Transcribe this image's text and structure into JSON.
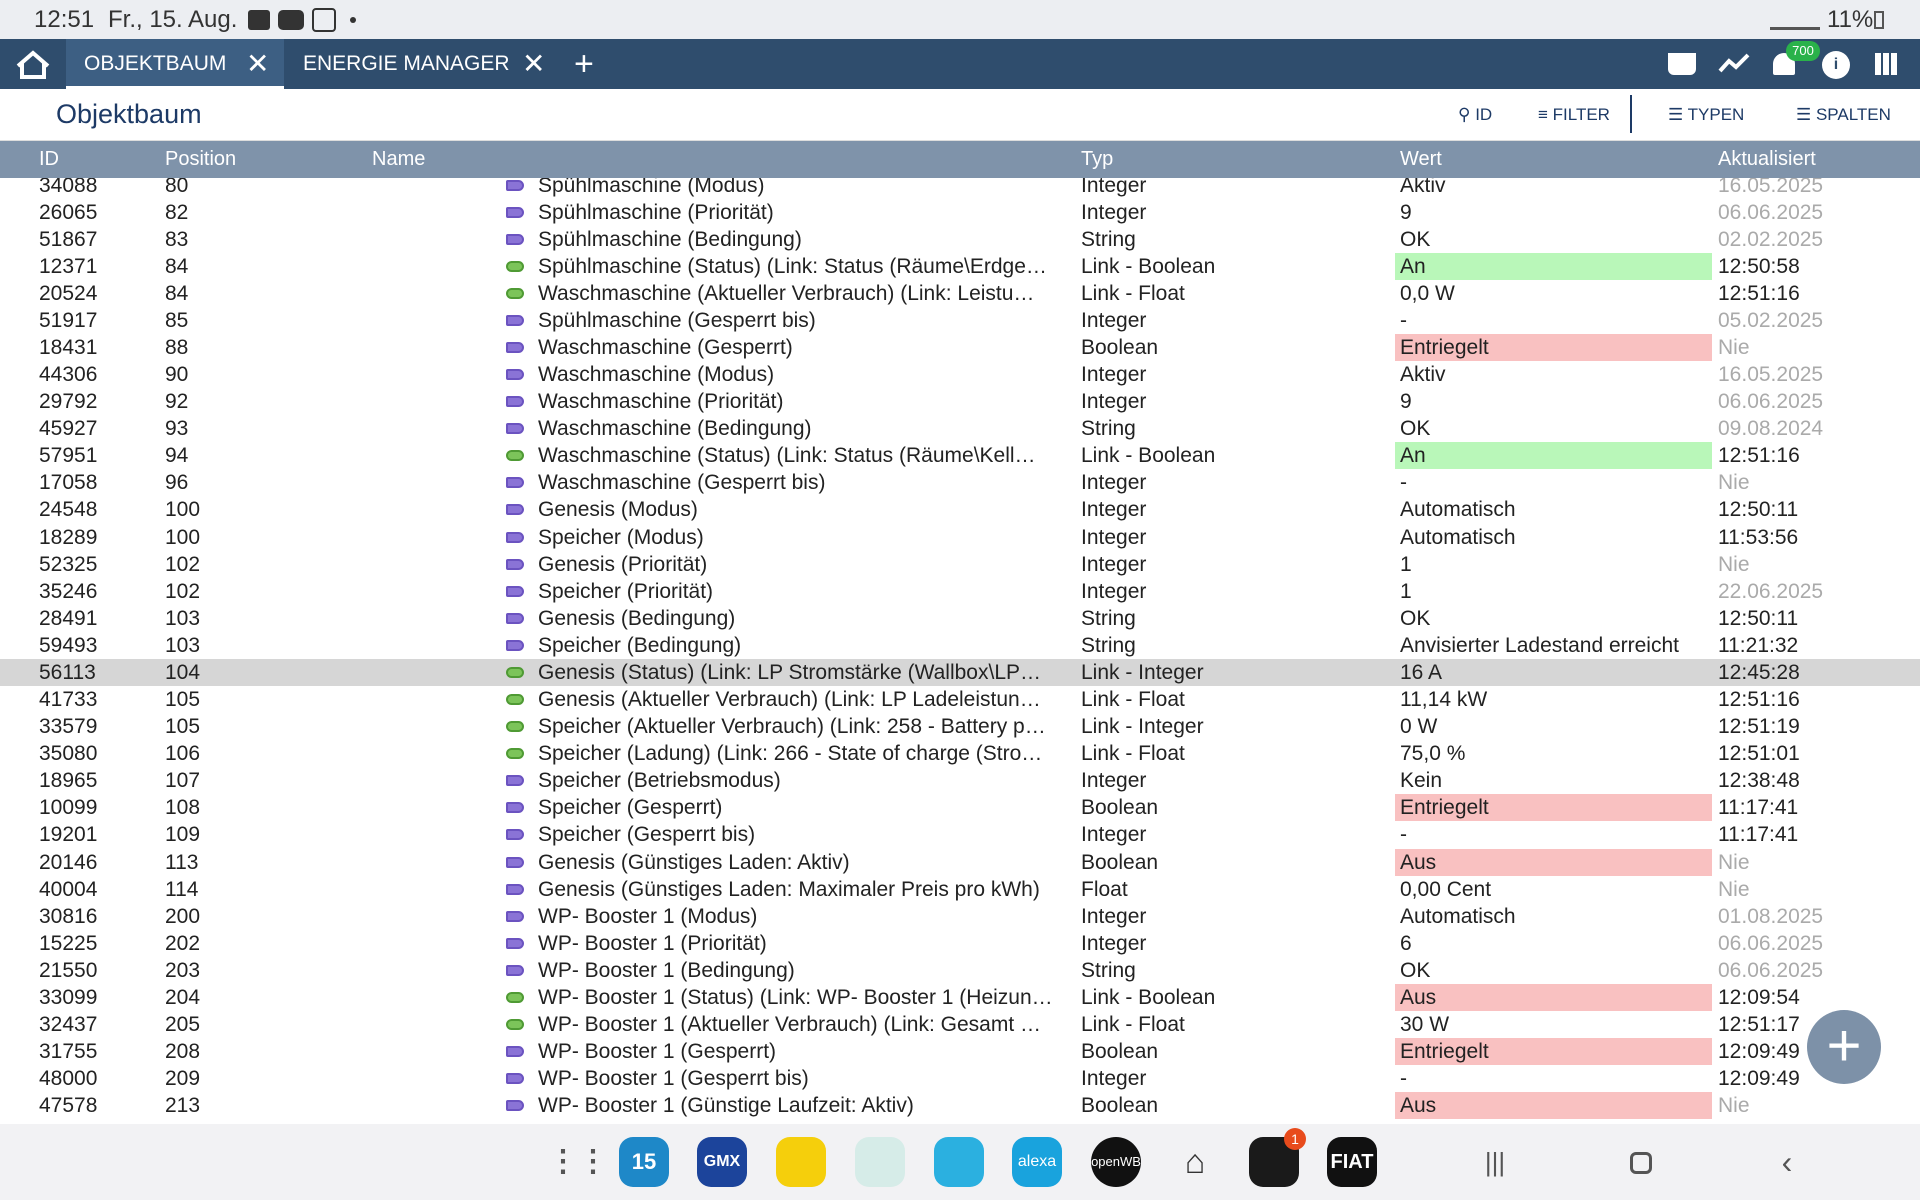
{
  "status_bar": {
    "time": "12:51",
    "date": "Fr., 15. Aug.",
    "battery": "11%"
  },
  "tabs": [
    "OBJEKTBAUM",
    "ENERGIE MANAGER"
  ],
  "notification_badge": "700",
  "header": {
    "title": "Objektbaum",
    "tools": [
      "ID",
      "FILTER",
      "TYPEN",
      "SPALTEN"
    ]
  },
  "table": {
    "columns": [
      "ID",
      "Position",
      "Name",
      "Typ",
      "Wert",
      "Aktualisiert"
    ],
    "rows": [
      [
        34088,
        80,
        "Spühlmaschine (Modus)",
        "Integer",
        "Aktiv",
        "16.05.2025"
      ],
      [
        26065,
        82,
        "Spühlmaschine (Priorität)",
        "Integer",
        "9",
        "06.06.2025"
      ],
      [
        51867,
        83,
        "Spühlmaschine (Bedingung)",
        "String",
        "OK",
        "02.02.2025"
      ],
      [
        12371,
        84,
        "Spühlmaschine (Status) (Link: Status (Räume\\Erdge…",
        "Link - Boolean",
        "An",
        "12:50:58"
      ],
      [
        20524,
        84,
        "Waschmaschine (Aktueller Verbrauch) (Link: Leistu…",
        "Link - Float",
        "0,0 W",
        "12:51:16"
      ],
      [
        51917,
        85,
        "Spühlmaschine (Gesperrt bis)",
        "Integer",
        "-",
        "05.02.2025"
      ],
      [
        18431,
        88,
        "Waschmaschine (Gesperrt)",
        "Boolean",
        "Entriegelt",
        "Nie"
      ],
      [
        44306,
        90,
        "Waschmaschine (Modus)",
        "Integer",
        "Aktiv",
        "16.05.2025"
      ],
      [
        29792,
        92,
        "Waschmaschine (Priorität)",
        "Integer",
        "9",
        "06.06.2025"
      ],
      [
        45927,
        93,
        "Waschmaschine (Bedingung)",
        "String",
        "OK",
        "09.08.2024"
      ],
      [
        57951,
        94,
        "Waschmaschine (Status) (Link: Status (Räume\\Kell…",
        "Link - Boolean",
        "An",
        "12:51:16"
      ],
      [
        17058,
        96,
        "Waschmaschine (Gesperrt bis)",
        "Integer",
        "-",
        "Nie"
      ],
      [
        24548,
        100,
        "Genesis (Modus)",
        "Integer",
        "Automatisch",
        "12:50:11"
      ],
      [
        18289,
        100,
        "Speicher (Modus)",
        "Integer",
        "Automatisch",
        "11:53:56"
      ],
      [
        52325,
        102,
        "Genesis (Priorität)",
        "Integer",
        "1",
        "Nie"
      ],
      [
        35246,
        102,
        "Speicher (Priorität)",
        "Integer",
        "1",
        "22.06.2025"
      ],
      [
        28491,
        103,
        "Genesis (Bedingung)",
        "String",
        "OK",
        "12:50:11"
      ],
      [
        59493,
        103,
        "Speicher (Bedingung)",
        "String",
        "Anvisierter Ladestand erreicht",
        "11:21:32"
      ],
      [
        56113,
        104,
        "Genesis (Status) (Link: LP Stromstärke (Wallbox\\LP…",
        "Link - Integer",
        "16 A",
        "12:45:28"
      ],
      [
        41733,
        105,
        "Genesis (Aktueller Verbrauch) (Link: LP Ladeleistun…",
        "Link - Float",
        "11,14 kW",
        "12:51:16"
      ],
      [
        33579,
        105,
        "Speicher (Aktueller Verbrauch) (Link: 258 - Battery p…",
        "Link - Integer",
        "0 W",
        "12:51:19"
      ],
      [
        35080,
        106,
        "Speicher (Ladung) (Link: 266 - State of charge (Stro…",
        "Link - Float",
        "75,0 %",
        "12:51:01"
      ],
      [
        18965,
        107,
        "Speicher (Betriebsmodus)",
        "Integer",
        "Kein",
        "12:38:48"
      ],
      [
        10099,
        108,
        "Speicher (Gesperrt)",
        "Boolean",
        "Entriegelt",
        "11:17:41"
      ],
      [
        19201,
        109,
        "Speicher (Gesperrt bis)",
        "Integer",
        "-",
        "11:17:41"
      ],
      [
        20146,
        113,
        "Genesis (Günstiges Laden: Aktiv)",
        "Boolean",
        "Aus",
        "Nie"
      ],
      [
        40004,
        114,
        "Genesis (Günstiges Laden: Maximaler Preis pro kWh)",
        "Float",
        "0,00 Cent",
        "Nie"
      ],
      [
        30816,
        200,
        "WP- Booster 1 (Modus)",
        "Integer",
        "Automatisch",
        "01.08.2025"
      ],
      [
        15225,
        202,
        "WP- Booster 1 (Priorität)",
        "Integer",
        "6",
        "06.06.2025"
      ],
      [
        21550,
        203,
        "WP- Booster 1 (Bedingung)",
        "String",
        "OK",
        "06.06.2025"
      ],
      [
        33099,
        204,
        "WP- Booster 1 (Status) (Link: WP- Booster 1 (Heizun…",
        "Link - Boolean",
        "Aus",
        "12:09:54"
      ],
      [
        32437,
        205,
        "WP- Booster 1 (Aktueller Verbrauch) (Link: Gesamt …",
        "Link - Float",
        "30 W",
        "12:51:17"
      ],
      [
        31755,
        208,
        "WP- Booster 1 (Gesperrt)",
        "Boolean",
        "Entriegelt",
        "12:09:49"
      ],
      [
        48000,
        209,
        "WP- Booster 1 (Gesperrt bis)",
        "Integer",
        "-",
        "12:09:49"
      ],
      [
        47578,
        213,
        "WP- Booster 1 (Günstige Laufzeit: Aktiv)",
        "Boolean",
        "Aus",
        "Nie"
      ]
    ],
    "selected_row_id": 56113
  },
  "dock": {
    "calendar": "15",
    "gmx": "GMX",
    "alexa": "alexa",
    "openwb": "openWB",
    "genesis_badge": "1",
    "fiat": "FIAT"
  }
}
